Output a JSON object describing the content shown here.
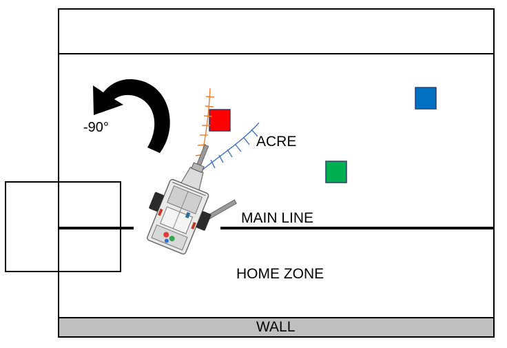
{
  "labels": {
    "rotation": "-90°",
    "acre": "ACRE",
    "main_line": "MAIN LINE",
    "home_zone": "HOME ZONE",
    "wall": "WALL"
  },
  "colors": {
    "red_block": "#ff0000",
    "blue_block": "#0070c0",
    "green_block": "#00b050",
    "wall": "#bfbfbf",
    "orange_scan": "#ed7d31",
    "blue_scan": "#4472c4"
  },
  "icons": [
    "rotate-left-arrow-icon",
    "robot-icon"
  ]
}
